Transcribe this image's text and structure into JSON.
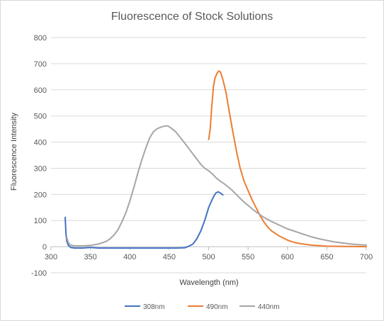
{
  "chart_data": {
    "type": "line",
    "title": "Fluorescence of Stock Solutions",
    "xlabel": "Wavelength (nm)",
    "ylabel": "Fluorescence Intensity",
    "xlim": [
      300,
      700
    ],
    "ylim": [
      -100,
      800
    ],
    "x_ticks": [
      300,
      350,
      400,
      450,
      500,
      550,
      600,
      650,
      700
    ],
    "y_ticks": [
      -100,
      0,
      100,
      200,
      300,
      400,
      500,
      600,
      700,
      800
    ],
    "grid": "horizontal",
    "legend_position": "bottom",
    "series": [
      {
        "name": "308nm",
        "color": "#4472c4",
        "points": [
          [
            318,
            112
          ],
          [
            319,
            50
          ],
          [
            320,
            20
          ],
          [
            322,
            5
          ],
          [
            325,
            -3
          ],
          [
            330,
            -5
          ],
          [
            340,
            -5
          ],
          [
            350,
            -3
          ],
          [
            360,
            -5
          ],
          [
            380,
            -5
          ],
          [
            400,
            -5
          ],
          [
            420,
            -5
          ],
          [
            440,
            -5
          ],
          [
            460,
            -5
          ],
          [
            470,
            -4
          ],
          [
            475,
            2
          ],
          [
            480,
            10
          ],
          [
            485,
            30
          ],
          [
            490,
            60
          ],
          [
            495,
            100
          ],
          [
            498,
            130
          ],
          [
            500,
            150
          ],
          [
            503,
            170
          ],
          [
            506,
            190
          ],
          [
            509,
            205
          ],
          [
            512,
            210
          ],
          [
            515,
            205
          ],
          [
            518,
            198
          ]
        ]
      },
      {
        "name": "490nm",
        "color": "#ed7d31",
        "points": [
          [
            500,
            410
          ],
          [
            502,
            450
          ],
          [
            504,
            540
          ],
          [
            506,
            610
          ],
          [
            508,
            645
          ],
          [
            511,
            665
          ],
          [
            513,
            672
          ],
          [
            515,
            668
          ],
          [
            518,
            640
          ],
          [
            522,
            590
          ],
          [
            526,
            520
          ],
          [
            530,
            450
          ],
          [
            535,
            370
          ],
          [
            540,
            300
          ],
          [
            545,
            250
          ],
          [
            550,
            215
          ],
          [
            555,
            180
          ],
          [
            560,
            150
          ],
          [
            565,
            120
          ],
          [
            570,
            95
          ],
          [
            575,
            75
          ],
          [
            580,
            60
          ],
          [
            590,
            40
          ],
          [
            600,
            25
          ],
          [
            610,
            15
          ],
          [
            620,
            10
          ],
          [
            630,
            6
          ],
          [
            640,
            4
          ],
          [
            650,
            2
          ],
          [
            670,
            1
          ],
          [
            700,
            0
          ]
        ]
      },
      {
        "name": "440nm",
        "color": "#a5a5a5",
        "points": [
          [
            320,
            35
          ],
          [
            322,
            15
          ],
          [
            325,
            6
          ],
          [
            330,
            3
          ],
          [
            340,
            3
          ],
          [
            350,
            5
          ],
          [
            360,
            10
          ],
          [
            370,
            20
          ],
          [
            375,
            30
          ],
          [
            380,
            45
          ],
          [
            385,
            65
          ],
          [
            390,
            95
          ],
          [
            395,
            130
          ],
          [
            400,
            175
          ],
          [
            405,
            225
          ],
          [
            410,
            280
          ],
          [
            415,
            330
          ],
          [
            420,
            375
          ],
          [
            425,
            415
          ],
          [
            430,
            440
          ],
          [
            435,
            452
          ],
          [
            440,
            458
          ],
          [
            445,
            462
          ],
          [
            448,
            462
          ],
          [
            452,
            455
          ],
          [
            458,
            440
          ],
          [
            462,
            425
          ],
          [
            466,
            410
          ],
          [
            470,
            395
          ],
          [
            475,
            375
          ],
          [
            480,
            355
          ],
          [
            485,
            335
          ],
          [
            490,
            315
          ],
          [
            495,
            300
          ],
          [
            500,
            290
          ],
          [
            505,
            278
          ],
          [
            510,
            262
          ],
          [
            515,
            250
          ],
          [
            520,
            240
          ],
          [
            525,
            228
          ],
          [
            530,
            215
          ],
          [
            535,
            200
          ],
          [
            540,
            185
          ],
          [
            545,
            170
          ],
          [
            550,
            158
          ],
          [
            555,
            145
          ],
          [
            560,
            133
          ],
          [
            570,
            112
          ],
          [
            580,
            96
          ],
          [
            590,
            82
          ],
          [
            600,
            68
          ],
          [
            610,
            58
          ],
          [
            620,
            48
          ],
          [
            630,
            38
          ],
          [
            640,
            30
          ],
          [
            650,
            24
          ],
          [
            660,
            18
          ],
          [
            670,
            14
          ],
          [
            680,
            10
          ],
          [
            690,
            8
          ],
          [
            700,
            6
          ]
        ]
      }
    ]
  }
}
